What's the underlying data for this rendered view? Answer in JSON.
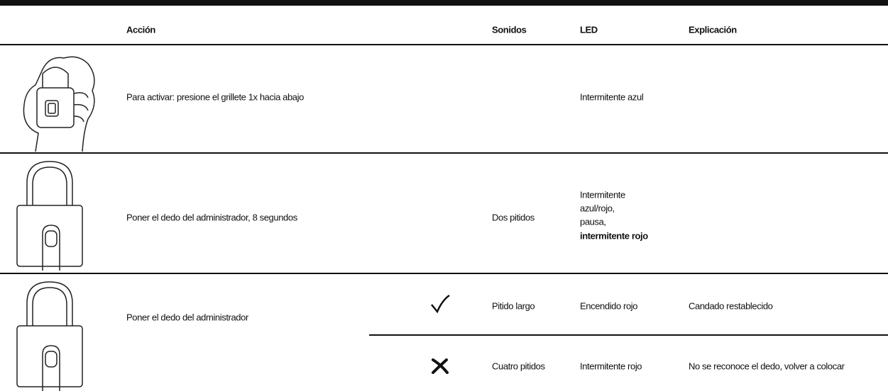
{
  "table": {
    "headers": [
      "Acción",
      "Sonidos",
      "LED",
      "Explicación"
    ],
    "rows": [
      {
        "action": "Para activar: presione el grillete 1x hacia abajo",
        "led": "Intermitente azul"
      },
      {
        "action": "Poner el dedo del administrador, 8 segundos",
        "sounds": "Dos pitidos",
        "led_lines": [
          "Intermitente",
          "azul/rojo,",
          "pausa,"
        ],
        "led_bold": "intermitente rojo"
      },
      {
        "action": "Poner el dedo del administrador",
        "results": [
          {
            "sounds": "Pitido largo",
            "led": "Encendido rojo",
            "explanation": "Candado restablecido"
          },
          {
            "sounds": "Cuatro pitidos",
            "led": "Intermitente rojo",
            "explanation": "No se reconoce el dedo, volver a colocar"
          }
        ]
      }
    ]
  }
}
